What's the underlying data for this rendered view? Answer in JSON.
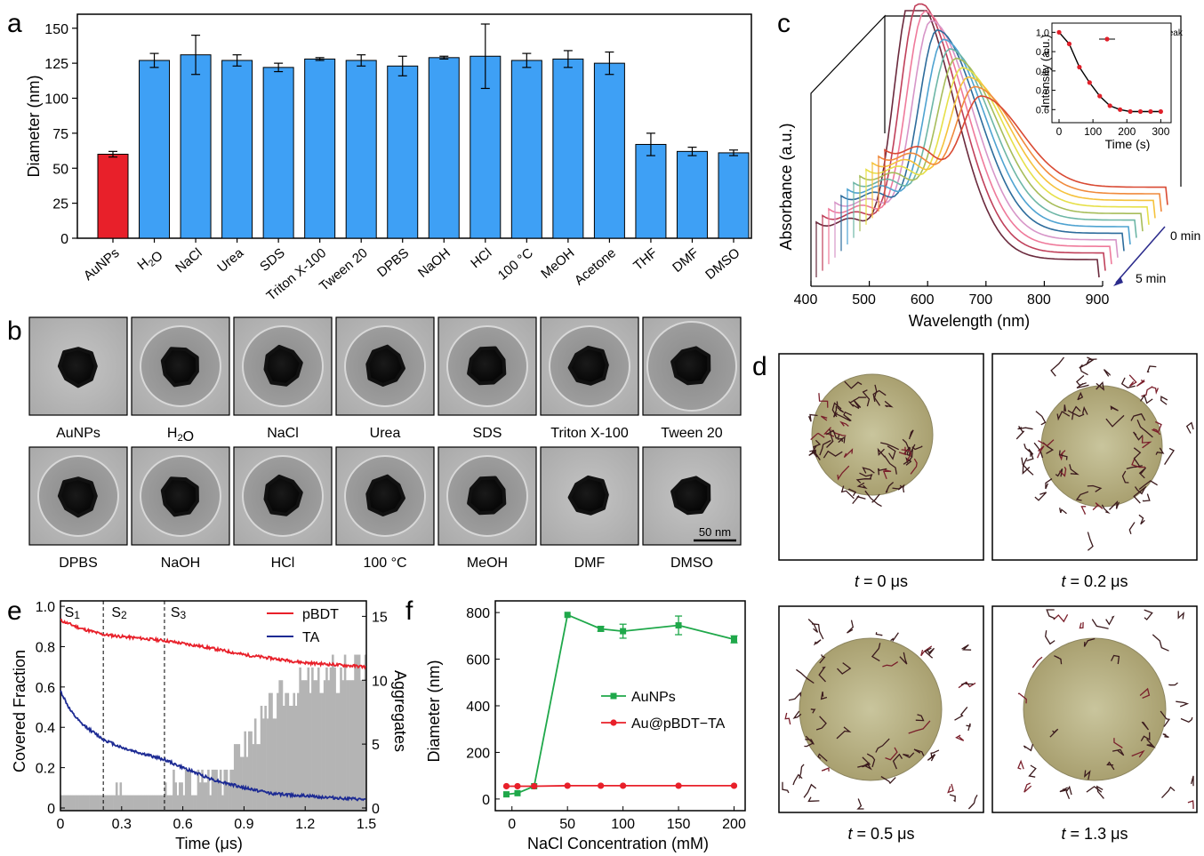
{
  "panel_letters": [
    "a",
    "b",
    "c",
    "d",
    "e",
    "f"
  ],
  "chart_data": [
    {
      "panel": "a",
      "type": "bar",
      "ylabel": "Diameter (nm)",
      "ylim": [
        0,
        160
      ],
      "yticks": [
        0,
        25,
        50,
        75,
        100,
        125,
        150
      ],
      "categories": [
        "AuNPs",
        "H2O",
        "NaCl",
        "Urea",
        "SDS",
        "Triton X-100",
        "Tween 20",
        "DPBS",
        "NaOH",
        "HCl",
        "100 °C",
        "MeOH",
        "Acetone",
        "THF",
        "DMF",
        "DMSO"
      ],
      "values": [
        60,
        127,
        131,
        127,
        122,
        128,
        127,
        123,
        129,
        130,
        127,
        128,
        125,
        67,
        62,
        61
      ],
      "errors": [
        2,
        5,
        14,
        4,
        3,
        1,
        4,
        7,
        1,
        23,
        5,
        6,
        8,
        8,
        3,
        2
      ],
      "colors": [
        "#e8202a",
        "#3ea0f5",
        "#3ea0f5",
        "#3ea0f5",
        "#3ea0f5",
        "#3ea0f5",
        "#3ea0f5",
        "#3ea0f5",
        "#3ea0f5",
        "#3ea0f5",
        "#3ea0f5",
        "#3ea0f5",
        "#3ea0f5",
        "#3ea0f5",
        "#3ea0f5",
        "#3ea0f5"
      ]
    },
    {
      "panel": "c",
      "type": "line",
      "xlabel": "Wavelength (nm)",
      "ylabel": "Absorbance (a.u.)",
      "xticks": [
        400,
        500,
        600,
        700,
        800,
        900
      ],
      "depth_labels": [
        "0 min",
        "5 min"
      ],
      "series_colors": [
        "#d94a33",
        "#f08a3c",
        "#f5c23c",
        "#e6e04a",
        "#a7bd5a",
        "#6db6a6",
        "#4fa3d1",
        "#2d6c9c",
        "#d796c8",
        "#ef7a9b",
        "#c0405a",
        "#6b2a3d"
      ],
      "peak_nm": 570,
      "inset": {
        "type": "line",
        "xlabel": "Time (s)",
        "ylabel": "Intensity (a.u.)",
        "xticks": [
          0,
          100,
          200,
          300
        ],
        "yticks": [
          0.6,
          0.7,
          0.8,
          0.9,
          1.0
        ],
        "legend": "Intensity at peak",
        "x": [
          0,
          30,
          60,
          90,
          120,
          150,
          180,
          210,
          240,
          270,
          300
        ],
        "y": [
          1.0,
          0.94,
          0.82,
          0.74,
          0.67,
          0.62,
          0.6,
          0.59,
          0.59,
          0.59,
          0.59
        ]
      }
    },
    {
      "panel": "e",
      "type": "line",
      "xlabel": "Time (μs)",
      "ylabel": "Covered Fraction",
      "y2label": "Aggregates",
      "xlim": [
        0,
        1.5
      ],
      "xticks": [
        0,
        0.3,
        0.6,
        0.9,
        1.2,
        1.5
      ],
      "ylim": [
        0,
        1.0
      ],
      "yticks": [
        0,
        0.2,
        0.4,
        0.6,
        0.8,
        1.0
      ],
      "y2lim": [
        0,
        16
      ],
      "y2ticks": [
        0,
        5,
        10,
        15
      ],
      "stage_lines": [
        0.21,
        0.51
      ],
      "stage_labels": [
        "S1",
        "S2",
        "S3"
      ],
      "series": [
        {
          "name": "pBDT",
          "color": "#e8202a",
          "x": [
            0,
            0.1,
            0.21,
            0.3,
            0.51,
            0.7,
            0.9,
            1.05,
            1.2,
            1.35,
            1.5
          ],
          "y": [
            0.93,
            0.89,
            0.86,
            0.85,
            0.83,
            0.8,
            0.76,
            0.74,
            0.72,
            0.71,
            0.7
          ]
        },
        {
          "name": "TA",
          "color": "#1c2a93",
          "x": [
            0,
            0.05,
            0.1,
            0.21,
            0.3,
            0.4,
            0.51,
            0.6,
            0.75,
            0.9,
            1.05,
            1.2,
            1.35,
            1.5
          ],
          "y": [
            0.58,
            0.48,
            0.42,
            0.34,
            0.3,
            0.27,
            0.24,
            0.2,
            0.14,
            0.1,
            0.07,
            0.06,
            0.05,
            0.04
          ]
        }
      ],
      "aggregates": {
        "x": [
          0,
          0.3,
          0.5,
          0.6,
          0.7,
          0.8,
          0.9,
          1.0,
          1.1,
          1.2,
          1.3,
          1.4,
          1.5
        ],
        "y": [
          1,
          1,
          1,
          2,
          2,
          3,
          5,
          7,
          9,
          10,
          10,
          11,
          11
        ]
      }
    },
    {
      "panel": "f",
      "type": "line",
      "xlabel": "NaCl Concentration (mM)",
      "ylabel": "Diameter (nm)",
      "xticks": [
        0,
        50,
        100,
        150,
        200
      ],
      "yticks": [
        0,
        200,
        400,
        600,
        800
      ],
      "xlim": [
        -15,
        210
      ],
      "ylim": [
        -50,
        850
      ],
      "series": [
        {
          "name": "AuNPs",
          "color": "#1fa84a",
          "x": [
            -5,
            5,
            20,
            50,
            80,
            100,
            150,
            200
          ],
          "y": [
            20,
            25,
            55,
            790,
            730,
            720,
            745,
            685
          ],
          "err": [
            0,
            0,
            0,
            0,
            10,
            30,
            40,
            15
          ]
        },
        {
          "name": "Au@pBDT−TA",
          "color": "#e8202a",
          "x": [
            -5,
            5,
            20,
            50,
            80,
            100,
            150,
            200
          ],
          "y": [
            55,
            55,
            55,
            57,
            57,
            57,
            57,
            57
          ],
          "err": [
            0,
            0,
            0,
            0,
            0,
            0,
            0,
            0
          ]
        }
      ]
    }
  ],
  "panel_b": {
    "row1_labels": [
      "AuNPs",
      "H2O",
      "NaCl",
      "Urea",
      "SDS",
      "Triton X-100",
      "Tween 20"
    ],
    "row2_labels": [
      "DPBS",
      "NaOH",
      "HCl",
      "100 °C",
      "MeOH",
      "DMF",
      "DMSO"
    ],
    "scale_bar": "50 nm"
  },
  "panel_d": {
    "labels": [
      "t = 0 μs",
      "t = 0.2 μs",
      "t = 0.5 μs",
      "t = 1.3 μs"
    ]
  }
}
